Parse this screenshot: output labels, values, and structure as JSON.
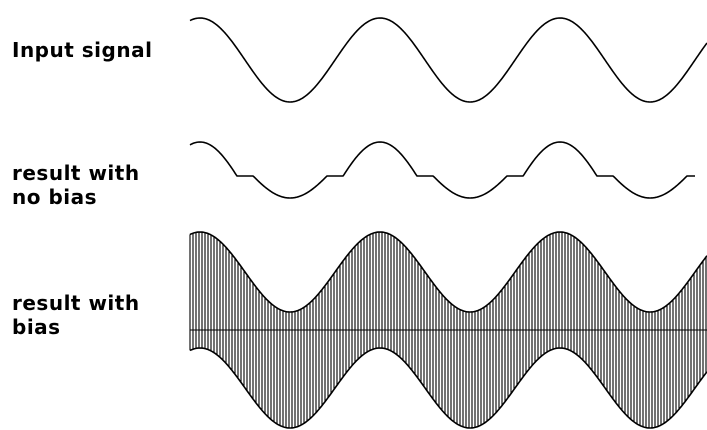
{
  "labels": {
    "input_signal": "Input signal",
    "no_bias_line1": "result with",
    "no_bias_line2": "no bias",
    "bias_line1": "result with",
    "bias_line2": "bias"
  },
  "colors": {
    "ink": "#000000",
    "background": "#ffffff"
  }
}
